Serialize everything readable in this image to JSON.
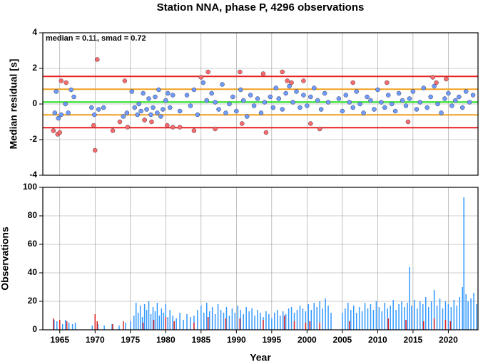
{
  "chart_data": [
    {
      "type": "scatter",
      "title": "Station NNA, phase P, 4296 observations",
      "ylabel": "Median residual [s]",
      "annotation": "median = 0.11, smad = 0.72",
      "xlim": [
        1962.6,
        2024.2
      ],
      "ylim": [
        -4,
        4
      ],
      "yticks": [
        -4,
        -2,
        0,
        2,
        4
      ],
      "grid": true,
      "reference_lines": [
        {
          "value": 1.55,
          "color": "#e82020"
        },
        {
          "value": 0.83,
          "color": "#f0a020"
        },
        {
          "value": 0.11,
          "color": "#20e020"
        },
        {
          "value": -0.61,
          "color": "#f0a020"
        },
        {
          "value": -1.33,
          "color": "#e82020"
        }
      ],
      "series": [
        {
          "color": "#6f9cff",
          "x": [
            1964.3,
            1964.5,
            1964.8,
            1965.2,
            1965.8,
            1966.2,
            1966.6,
            1967,
            1969.5,
            1969.9,
            1970.5,
            1971.2,
            1974,
            1974.5,
            1975.2,
            1975.6,
            1976,
            1976.2,
            1976.5,
            1976.8,
            1977,
            1977.3,
            1977.6,
            1977.9,
            1978.2,
            1978.5,
            1978.8,
            1979,
            1979.3,
            1979.6,
            1980,
            1980.3,
            1980.6,
            1981,
            1982,
            1983,
            1983.5,
            1984,
            1984.5,
            1985.3,
            1985.8,
            1986.5,
            1987,
            1987.5,
            1988,
            1988.5,
            1989,
            1989.5,
            1990,
            1990.6,
            1991,
            1991.5,
            1992,
            1992.5,
            1993,
            1993.5,
            1994,
            1994.8,
            1995.2,
            1995.6,
            1996,
            1996.5,
            1997,
            1997.5,
            1998,
            1998.5,
            1999,
            1999.5,
            2000,
            2000.5,
            2001,
            2001.5,
            2002,
            2002.5,
            2003,
            2004.5,
            2005,
            2005.5,
            2006,
            2006.5,
            2007,
            2007.5,
            2008,
            2008.5,
            2009,
            2009.5,
            2010,
            2010.5,
            2011,
            2011.5,
            2012,
            2012.5,
            2013,
            2013.5,
            2014,
            2014.5,
            2015,
            2015.5,
            2016,
            2016.5,
            2017,
            2017.5,
            2018,
            2018.5,
            2019,
            2019.5,
            2020,
            2020.5,
            2021,
            2021.5,
            2022,
            2022.5,
            2023,
            2023.5
          ],
          "values": [
            -0.5,
            0.7,
            -0.8,
            -0.6,
            0.0,
            -0.5,
            0.8,
            0.4,
            -0.2,
            -0.6,
            -0.3,
            -0.2,
            -0.7,
            -0.5,
            0.7,
            -0.2,
            -0.6,
            0.0,
            -0.4,
            0.6,
            -0.9,
            -0.3,
            0.3,
            -0.6,
            -0.2,
            0.4,
            -0.5,
            0.8,
            -0.7,
            -0.3,
            0.2,
            0.6,
            -0.2,
            0.5,
            -0.4,
            0.5,
            -0.1,
            0.8,
            -0.6,
            1.2,
            0.2,
            0.6,
            0.1,
            -0.3,
            1.1,
            -0.5,
            0.0,
            0.4,
            -0.4,
            0.8,
            0.2,
            -0.7,
            0.5,
            -0.1,
            0.3,
            -0.5,
            0.1,
            0.4,
            -0.2,
            0.9,
            0.3,
            -0.3,
            0.6,
            1.0,
            0.1,
            0.7,
            -0.2,
            0.5,
            -0.1,
            0.4,
            0.9,
            0.2,
            -0.3,
            0.6,
            0.1,
            0.3,
            -0.4,
            0.5,
            0.1,
            -0.2,
            0.7,
            0.0,
            -0.5,
            0.4,
            0.2,
            -0.3,
            0.8,
            0.1,
            -0.2,
            0.5,
            0.0,
            -0.4,
            0.6,
            0.2,
            -0.1,
            0.3,
            0.7,
            -0.3,
            0.1,
            0.9,
            -0.2,
            0.4,
            1.0,
            0.0,
            -0.5,
            0.3,
            0.6,
            -0.1,
            0.2,
            0.4,
            -0.2,
            0.7,
            0.1,
            0.5
          ]
        },
        {
          "color": "#ff6b6b",
          "x": [
            1964.1,
            1964.7,
            1965,
            1965.2,
            1965.9,
            1969.8,
            1970,
            1970.3,
            1972.5,
            1973.5,
            1974.2,
            1974.6,
            1977,
            1978,
            1980.2,
            1981,
            1982,
            1984,
            1985,
            1986,
            1987,
            1990.5,
            1990.8,
            1993.8,
            1994.2,
            1996.5,
            1997.2,
            1997.8,
            1999.5,
            2000.5,
            2001.8,
            2006.5,
            2011.3,
            2014.3,
            2017.8,
            2018.3,
            2019.7
          ],
          "values": [
            -1.5,
            -1.7,
            -1.6,
            1.3,
            1.2,
            -1.2,
            -2.6,
            2.5,
            -1.5,
            -1.0,
            1.3,
            -1.3,
            -0.9,
            -1.0,
            -1.2,
            -1.3,
            -1.3,
            -1.5,
            1.5,
            1.8,
            -1.4,
            1.8,
            -1.1,
            1.7,
            -1.6,
            1.8,
            1.3,
            1.2,
            1.3,
            -1.1,
            -1.4,
            1.2,
            1.2,
            -1.0,
            1.5,
            1.2,
            1.4
          ]
        }
      ]
    },
    {
      "type": "bar",
      "xlabel": "Year",
      "ylabel": "Observations",
      "xlim": [
        1962.6,
        2024.2
      ],
      "xticks": [
        1965,
        1970,
        1975,
        1980,
        1985,
        1990,
        1995,
        2000,
        2005,
        2010,
        2015,
        2020
      ],
      "ylim": [
        0,
        100
      ],
      "yticks": [
        0,
        20,
        40,
        60,
        80,
        100
      ],
      "grid": true,
      "series": [
        {
          "color": "#3399ff",
          "x": [
            1964.2,
            1964.6,
            1965.0,
            1965.4,
            1965.8,
            1966.3,
            1966.8,
            1967.2,
            1969.6,
            1970.4,
            1971.3,
            1972.4,
            1973.4,
            1974.3,
            1975.0,
            1975.5,
            1975.8,
            1976.1,
            1976.4,
            1976.7,
            1977.0,
            1977.3,
            1977.6,
            1977.9,
            1978.2,
            1978.5,
            1978.8,
            1979.1,
            1979.4,
            1979.7,
            1980.0,
            1980.3,
            1980.6,
            1981.0,
            1981.5,
            1982.0,
            1982.5,
            1983.0,
            1983.5,
            1984.0,
            1984.5,
            1985.0,
            1985.4,
            1985.8,
            1986.2,
            1986.6,
            1987.0,
            1987.4,
            1987.8,
            1988.2,
            1988.6,
            1989.0,
            1989.4,
            1989.8,
            1990.2,
            1990.6,
            1991.0,
            1991.4,
            1991.8,
            1992.2,
            1992.6,
            1993.0,
            1993.4,
            1993.8,
            1994.2,
            1994.6,
            1995.0,
            1995.4,
            1995.8,
            1996.2,
            1996.6,
            1997.0,
            1997.4,
            1997.8,
            1998.2,
            1998.6,
            1999.0,
            1999.4,
            1999.8,
            2000.2,
            2000.6,
            2001.0,
            2001.4,
            2001.8,
            2002.2,
            2002.6,
            2003.0,
            2003.4,
            2005.0,
            2005.4,
            2005.8,
            2006.2,
            2006.6,
            2007.0,
            2007.4,
            2007.8,
            2008.2,
            2008.6,
            2009.0,
            2009.4,
            2009.8,
            2010.2,
            2010.6,
            2011.0,
            2011.4,
            2011.8,
            2012.2,
            2012.6,
            2013.0,
            2013.4,
            2013.8,
            2014.2,
            2014.5,
            2014.8,
            2015.2,
            2015.6,
            2016.0,
            2016.4,
            2016.8,
            2017.2,
            2017.6,
            2018.0,
            2018.4,
            2018.8,
            2019.2,
            2019.6,
            2020.0,
            2020.4,
            2020.8,
            2021.2,
            2021.6,
            2022.0,
            2022.2,
            2022.5,
            2022.8,
            2023.2,
            2023.6,
            2024.0
          ],
          "values": [
            7,
            6,
            5,
            4,
            7,
            5,
            4,
            5,
            3,
            4,
            3,
            4,
            3,
            5,
            6,
            10,
            19,
            12,
            17,
            9,
            18,
            14,
            20,
            11,
            16,
            13,
            19,
            10,
            15,
            12,
            18,
            9,
            14,
            10,
            8,
            12,
            7,
            11,
            9,
            10,
            14,
            17,
            12,
            19,
            13,
            16,
            11,
            18,
            14,
            12,
            16,
            10,
            15,
            12,
            17,
            14,
            11,
            16,
            13,
            15,
            10,
            14,
            12,
            9,
            13,
            11,
            8,
            12,
            14,
            10,
            13,
            11,
            15,
            16,
            12,
            14,
            17,
            15,
            13,
            18,
            14,
            19,
            16,
            20,
            15,
            22,
            17,
            12,
            12,
            15,
            19,
            14,
            17,
            12,
            16,
            13,
            19,
            15,
            18,
            14,
            20,
            16,
            13,
            19,
            15,
            17,
            21,
            14,
            18,
            20,
            16,
            19,
            44,
            17,
            21,
            15,
            20,
            18,
            23,
            16,
            20,
            28,
            17,
            22,
            15,
            20,
            18,
            16,
            21,
            17,
            23,
            30,
            93,
            25,
            20,
            22,
            26,
            18
          ]
        },
        {
          "color": "#dd2222",
          "x": [
            1964.1,
            1965.0,
            1966.0,
            1970.0,
            1970.3,
            1972.5,
            1974.0,
            1976.8,
            1978.3,
            1980.0,
            1981.2,
            1984.0,
            1986.0,
            1988.5,
            1990.5,
            1993.8,
            1996.8,
            1998.2,
            1999.8,
            2000.4,
            2001.8,
            2006.0,
            2011.5,
            2014.0,
            2016.5,
            2018.0,
            2019.6,
            2020.3
          ],
          "values": [
            8,
            7,
            6,
            11,
            6,
            4,
            6,
            5,
            7,
            9,
            6,
            5,
            9,
            8,
            8,
            7,
            10,
            6,
            5,
            6,
            5,
            6,
            8,
            7,
            6,
            8,
            7,
            6
          ]
        }
      ]
    }
  ]
}
